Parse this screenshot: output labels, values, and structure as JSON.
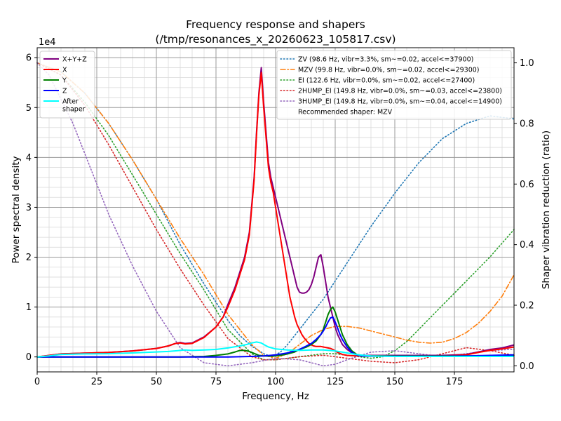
{
  "chart_data": {
    "type": "line",
    "title": "Frequency response and shapers",
    "subtitle": "(/tmp/resonances_x_20260623_105817.csv)",
    "xlabel": "Frequency, Hz",
    "ylabel": "Power spectral density",
    "y2label": "Shaper vibration reduction (ratio)",
    "y_offset_label": "1e4",
    "xlim": [
      0,
      200
    ],
    "ylim": [
      -3000,
      62000
    ],
    "y2lim": [
      -0.02,
      1.05
    ],
    "grid": true,
    "x_ticks": [
      "0",
      "25",
      "50",
      "75",
      "100",
      "125",
      "150",
      "175"
    ],
    "y_ticks": [
      "0",
      "1",
      "2",
      "3",
      "4",
      "5",
      "6"
    ],
    "y2_ticks": [
      "0.0",
      "0.2",
      "0.4",
      "0.6",
      "0.8",
      "1.0"
    ],
    "psd_series": [
      {
        "name": "X+Y+Z",
        "color": "#800080",
        "x": [
          0,
          5,
          10,
          20,
          30,
          40,
          50,
          55,
          58,
          60,
          62,
          65,
          70,
          75,
          78,
          80,
          83,
          85,
          87,
          89,
          91,
          92,
          93,
          94,
          95,
          96,
          97,
          98,
          99,
          100,
          101,
          102,
          103,
          104,
          105,
          106,
          107,
          108,
          109,
          110,
          111,
          112,
          113,
          114,
          115,
          116,
          117,
          118,
          119,
          120,
          121,
          122,
          123,
          124,
          125,
          126,
          127,
          128,
          130,
          132,
          134,
          135,
          140,
          150,
          160,
          170,
          180,
          185,
          190,
          195,
          200
        ],
        "y": [
          0,
          300,
          600,
          750,
          900,
          1200,
          1700,
          2200,
          2700,
          2900,
          2700,
          2800,
          4000,
          6000,
          8000,
          10500,
          14000,
          17000,
          20000,
          25000,
          36000,
          45000,
          53000,
          58000,
          51000,
          45000,
          39000,
          36000,
          34000,
          32000,
          30000,
          28000,
          26000,
          24000,
          22000,
          20000,
          18000,
          16000,
          14000,
          13000,
          12800,
          12800,
          13000,
          13500,
          14500,
          16000,
          18000,
          20000,
          20500,
          18000,
          15000,
          12000,
          10000,
          8000,
          6000,
          4500,
          3500,
          2500,
          1500,
          800,
          400,
          300,
          300,
          300,
          300,
          300,
          500,
          1000,
          1500,
          1800,
          2400
        ]
      },
      {
        "name": "X",
        "color": "#ff0000",
        "x": [
          0,
          5,
          10,
          20,
          30,
          40,
          50,
          55,
          58,
          60,
          62,
          65,
          70,
          75,
          78,
          80,
          83,
          85,
          87,
          89,
          91,
          92,
          93,
          94,
          95,
          96,
          97,
          98,
          99,
          100,
          101,
          102,
          103,
          104,
          105,
          106,
          107,
          108,
          109,
          110,
          111,
          112,
          113,
          114,
          115,
          116,
          117,
          118,
          119,
          120,
          121,
          122,
          123,
          124,
          125,
          126,
          127,
          128,
          130,
          132,
          134,
          135,
          140,
          150,
          160,
          170,
          180,
          185,
          190,
          195,
          200
        ],
        "y": [
          0,
          300,
          600,
          750,
          900,
          1200,
          1700,
          2200,
          2700,
          2800,
          2600,
          2700,
          3900,
          6000,
          8000,
          10000,
          13500,
          16500,
          19500,
          24500,
          35500,
          44500,
          52500,
          57000,
          50000,
          44000,
          38000,
          35000,
          33000,
          30000,
          27000,
          24000,
          21000,
          18000,
          15000,
          12000,
          10000,
          8000,
          6500,
          5500,
          4500,
          3800,
          3200,
          2700,
          2400,
          2200,
          2100,
          2100,
          2100,
          2000,
          1900,
          1800,
          1700,
          1500,
          1200,
          900,
          700,
          500,
          300,
          250,
          200,
          200,
          200,
          200,
          200,
          200,
          400,
          900,
          1300,
          1600,
          2000
        ]
      },
      {
        "name": "Y",
        "color": "#008000",
        "x": [
          0,
          20,
          40,
          60,
          70,
          75,
          80,
          83,
          85,
          87,
          89,
          91,
          92,
          93,
          95,
          98,
          100,
          102,
          105,
          108,
          110,
          113,
          115,
          117,
          119,
          120,
          121,
          122,
          123,
          124,
          125,
          126,
          127,
          128,
          130,
          132,
          134,
          136,
          140,
          150,
          160,
          170,
          180,
          190,
          200
        ],
        "y": [
          0,
          0,
          0,
          0,
          100,
          300,
          600,
          1000,
          1300,
          1300,
          1100,
          700,
          500,
          300,
          200,
          150,
          200,
          300,
          600,
          1000,
          1500,
          2000,
          2500,
          3200,
          4500,
          5500,
          7000,
          8500,
          9500,
          10000,
          9000,
          7500,
          6000,
          4500,
          2500,
          1200,
          500,
          300,
          200,
          200,
          200,
          200,
          200,
          200,
          300
        ]
      },
      {
        "name": "Z",
        "color": "#0000ff",
        "x": [
          0,
          20,
          40,
          60,
          80,
          90,
          95,
          100,
          105,
          110,
          113,
          115,
          117,
          119,
          120,
          121,
          122,
          123,
          124,
          125,
          126,
          127,
          128,
          130,
          132,
          134,
          136,
          140,
          150,
          160,
          170,
          180,
          190,
          200
        ],
        "y": [
          0,
          0,
          0,
          0,
          0,
          100,
          200,
          400,
          800,
          1500,
          2200,
          2700,
          3500,
          4500,
          5200,
          6000,
          7000,
          7800,
          8000,
          7000,
          5800,
          4500,
          3500,
          2000,
          900,
          400,
          200,
          150,
          150,
          150,
          150,
          200,
          300,
          400
        ]
      },
      {
        "name": "After\nshaper",
        "color": "#00ffff",
        "x": [
          0,
          5,
          10,
          20,
          30,
          40,
          50,
          55,
          60,
          62,
          65,
          70,
          75,
          80,
          85,
          88,
          90,
          92,
          94,
          95,
          97,
          100,
          105,
          110,
          115,
          120,
          125,
          130,
          135,
          140,
          150,
          160,
          170,
          180,
          190,
          200
        ],
        "y": [
          0,
          200,
          500,
          600,
          650,
          800,
          1000,
          1100,
          1300,
          1400,
          1300,
          1400,
          1500,
          1800,
          2200,
          2500,
          2800,
          3000,
          2800,
          2500,
          2000,
          1600,
          1400,
          1300,
          1400,
          1400,
          1200,
          800,
          400,
          200,
          100,
          100,
          100,
          100,
          100,
          100
        ]
      }
    ],
    "shaper_series": [
      {
        "name": "ZV (98.6 Hz, vibr=3.3%, sm~=0.02, accel<=37900)",
        "color": "#1f77b4",
        "dash": "dotted",
        "x": [
          0,
          10,
          20,
          30,
          40,
          50,
          60,
          70,
          80,
          85,
          90,
          95,
          98.6,
          102,
          105,
          110,
          120,
          130,
          140,
          150,
          160,
          170,
          180,
          190,
          200
        ],
        "y": [
          1.0,
          0.97,
          0.9,
          0.8,
          0.68,
          0.55,
          0.4,
          0.27,
          0.15,
          0.1,
          0.065,
          0.04,
          0.03,
          0.045,
          0.07,
          0.12,
          0.22,
          0.34,
          0.46,
          0.57,
          0.67,
          0.75,
          0.8,
          0.825,
          0.815
        ]
      },
      {
        "name": "MZV (99.8 Hz, vibr=0.0%, sm~=0.02, accel<=29300)",
        "color": "#ff7f0e",
        "dash": "dashdot",
        "x": [
          0,
          10,
          20,
          30,
          40,
          50,
          60,
          70,
          80,
          90,
          95,
          100,
          105,
          110,
          115,
          120,
          125,
          130,
          135,
          140,
          145,
          150,
          155,
          160,
          165,
          170,
          175,
          180,
          185,
          190,
          195,
          200
        ],
        "y": [
          1.0,
          0.97,
          0.9,
          0.8,
          0.68,
          0.55,
          0.42,
          0.3,
          0.17,
          0.07,
          0.035,
          0.025,
          0.04,
          0.07,
          0.1,
          0.12,
          0.13,
          0.13,
          0.125,
          0.115,
          0.105,
          0.095,
          0.085,
          0.078,
          0.075,
          0.078,
          0.09,
          0.11,
          0.14,
          0.18,
          0.23,
          0.3
        ]
      },
      {
        "name": "EI (122.6 Hz, vibr=0.0%, sm~=0.02, accel<=27400)",
        "color": "#2ca02c",
        "dash": "dotted",
        "x": [
          0,
          10,
          20,
          30,
          40,
          50,
          60,
          70,
          80,
          90,
          95,
          100,
          105,
          110,
          115,
          120,
          125,
          130,
          135,
          140,
          145,
          150,
          155,
          160,
          170,
          180,
          190,
          200
        ],
        "y": [
          1.0,
          0.96,
          0.87,
          0.76,
          0.63,
          0.5,
          0.37,
          0.25,
          0.12,
          0.04,
          0.02,
          0.02,
          0.025,
          0.03,
          0.035,
          0.04,
          0.04,
          0.035,
          0.03,
          0.025,
          0.03,
          0.05,
          0.08,
          0.12,
          0.2,
          0.28,
          0.36,
          0.45
        ]
      },
      {
        "name": "2HUMP_EI (149.8 Hz, vibr=0.0%, sm~=0.03, accel<=23800)",
        "color": "#d62728",
        "dash": "dotted",
        "x": [
          0,
          10,
          20,
          30,
          40,
          50,
          60,
          70,
          80,
          90,
          95,
          100,
          105,
          110,
          120,
          130,
          140,
          150,
          160,
          170,
          180,
          190,
          200
        ],
        "y": [
          1.0,
          0.96,
          0.86,
          0.73,
          0.59,
          0.45,
          0.32,
          0.2,
          0.09,
          0.03,
          0.02,
          0.02,
          0.025,
          0.03,
          0.035,
          0.025,
          0.015,
          0.01,
          0.02,
          0.04,
          0.06,
          0.05,
          0.035
        ]
      },
      {
        "name": "3HUMP_EI (149.8 Hz, vibr=0.0%, sm~=0.04, accel<=14900)",
        "color": "#9467bd",
        "dash": "dotted",
        "x": [
          0,
          5,
          10,
          15,
          20,
          25,
          30,
          40,
          50,
          60,
          70,
          80,
          90,
          100,
          110,
          115,
          120,
          125,
          130,
          140,
          150,
          160,
          170,
          180,
          190,
          200
        ],
        "y": [
          1.0,
          0.96,
          0.88,
          0.8,
          0.7,
          0.6,
          0.5,
          0.33,
          0.18,
          0.06,
          0.01,
          0.0,
          0.01,
          0.025,
          0.02,
          0.01,
          0.0,
          0.005,
          0.02,
          0.045,
          0.05,
          0.04,
          0.03,
          0.04,
          0.05,
          0.055
        ]
      }
    ],
    "legend_left": [
      "X+Y+Z",
      "X",
      "Y",
      "Z",
      "After\nshaper"
    ],
    "legend_right": [
      "ZV (98.6 Hz, vibr=3.3%, sm~=0.02, accel<=37900)",
      "MZV (99.8 Hz, vibr=0.0%, sm~=0.02, accel<=29300)",
      "EI (122.6 Hz, vibr=0.0%, sm~=0.02, accel<=27400)",
      "2HUMP_EI (149.8 Hz, vibr=0.0%, sm~=0.03, accel<=23800)",
      "3HUMP_EI (149.8 Hz, vibr=0.0%, sm~=0.04, accel<=14900)",
      "Recommended shaper: MZV"
    ],
    "legend_left_placement": "top-left",
    "legend_right_placement": "top-right"
  }
}
